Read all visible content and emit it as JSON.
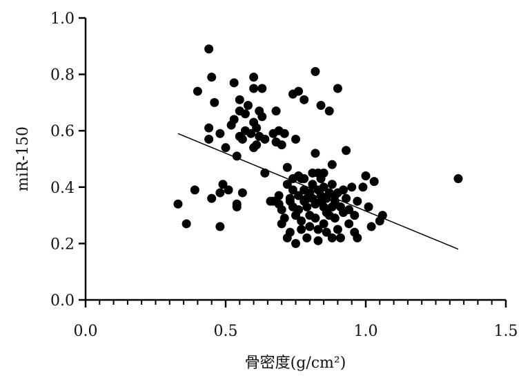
{
  "chart_data": {
    "type": "scatter",
    "title": "",
    "xlabel": "骨密度(g/cm²)",
    "ylabel": "miR-150",
    "xlim": [
      0.0,
      1.5
    ],
    "ylim": [
      0.0,
      1.0
    ],
    "x_ticks": [
      "0.0",
      "0.5",
      "1.0",
      "1.5"
    ],
    "y_ticks": [
      "0.0",
      "0.2",
      "0.4",
      "0.6",
      "0.8",
      "1.0"
    ],
    "grid": false,
    "legend": "none",
    "points": [
      [
        0.33,
        0.34
      ],
      [
        0.36,
        0.27
      ],
      [
        0.39,
        0.39
      ],
      [
        0.4,
        0.74
      ],
      [
        0.44,
        0.89
      ],
      [
        0.44,
        0.61
      ],
      [
        0.44,
        0.57
      ],
      [
        0.45,
        0.79
      ],
      [
        0.45,
        0.36
      ],
      [
        0.46,
        0.7
      ],
      [
        0.48,
        0.26
      ],
      [
        0.48,
        0.59
      ],
      [
        0.48,
        0.38
      ],
      [
        0.49,
        0.41
      ],
      [
        0.5,
        0.54
      ],
      [
        0.51,
        0.39
      ],
      [
        0.52,
        0.62
      ],
      [
        0.53,
        0.77
      ],
      [
        0.53,
        0.64
      ],
      [
        0.54,
        0.51
      ],
      [
        0.54,
        0.33
      ],
      [
        0.54,
        0.34
      ],
      [
        0.55,
        0.71
      ],
      [
        0.55,
        0.67
      ],
      [
        0.55,
        0.58
      ],
      [
        0.56,
        0.57
      ],
      [
        0.56,
        0.38
      ],
      [
        0.57,
        0.66
      ],
      [
        0.57,
        0.6
      ],
      [
        0.58,
        0.69
      ],
      [
        0.59,
        0.59
      ],
      [
        0.6,
        0.63
      ],
      [
        0.6,
        0.79
      ],
      [
        0.6,
        0.75
      ],
      [
        0.61,
        0.61
      ],
      [
        0.61,
        0.55
      ],
      [
        0.62,
        0.67
      ],
      [
        0.62,
        0.58
      ],
      [
        0.63,
        0.75
      ],
      [
        0.63,
        0.65
      ],
      [
        0.64,
        0.57
      ],
      [
        0.64,
        0.45
      ],
      [
        0.66,
        0.35
      ],
      [
        0.67,
        0.59
      ],
      [
        0.68,
        0.67
      ],
      [
        0.68,
        0.56
      ],
      [
        0.69,
        0.6
      ],
      [
        0.69,
        0.37
      ],
      [
        0.7,
        0.55
      ],
      [
        0.7,
        0.32
      ],
      [
        0.71,
        0.59
      ],
      [
        0.72,
        0.47
      ],
      [
        0.72,
        0.41
      ],
      [
        0.73,
        0.35
      ],
      [
        0.73,
        0.24
      ],
      [
        0.74,
        0.73
      ],
      [
        0.74,
        0.39
      ],
      [
        0.74,
        0.33
      ],
      [
        0.75,
        0.3
      ],
      [
        0.75,
        0.2
      ],
      [
        0.76,
        0.74
      ],
      [
        0.76,
        0.44
      ],
      [
        0.76,
        0.37
      ],
      [
        0.77,
        0.28
      ],
      [
        0.77,
        0.25
      ],
      [
        0.78,
        0.71
      ],
      [
        0.78,
        0.35
      ],
      [
        0.78,
        0.39
      ],
      [
        0.79,
        0.33
      ],
      [
        0.79,
        0.22
      ],
      [
        0.8,
        0.38
      ],
      [
        0.8,
        0.3
      ],
      [
        0.81,
        0.41
      ],
      [
        0.81,
        0.36
      ],
      [
        0.82,
        0.81
      ],
      [
        0.82,
        0.52
      ],
      [
        0.82,
        0.34
      ],
      [
        0.83,
        0.45
      ],
      [
        0.83,
        0.39
      ],
      [
        0.83,
        0.21
      ],
      [
        0.84,
        0.69
      ],
      [
        0.84,
        0.43
      ],
      [
        0.84,
        0.37
      ],
      [
        0.85,
        0.4
      ],
      [
        0.85,
        0.33
      ],
      [
        0.85,
        0.27
      ],
      [
        0.86,
        0.36
      ],
      [
        0.86,
        0.24
      ],
      [
        0.87,
        0.67
      ],
      [
        0.87,
        0.38
      ],
      [
        0.87,
        0.3
      ],
      [
        0.88,
        0.48
      ],
      [
        0.88,
        0.41
      ],
      [
        0.88,
        0.22
      ],
      [
        0.89,
        0.35
      ],
      [
        0.89,
        0.29
      ],
      [
        0.9,
        0.75
      ],
      [
        0.9,
        0.38
      ],
      [
        0.9,
        0.25
      ],
      [
        0.91,
        0.33
      ],
      [
        0.91,
        0.22
      ],
      [
        0.92,
        0.39
      ],
      [
        0.93,
        0.53
      ],
      [
        0.93,
        0.36
      ],
      [
        0.94,
        0.32
      ],
      [
        0.94,
        0.27
      ],
      [
        0.95,
        0.4
      ],
      [
        0.96,
        0.3
      ],
      [
        0.96,
        0.24
      ],
      [
        0.97,
        0.22
      ],
      [
        0.99,
        0.4
      ],
      [
        1.0,
        0.44
      ],
      [
        1.01,
        0.33
      ],
      [
        1.02,
        0.26
      ],
      [
        1.03,
        0.42
      ],
      [
        1.05,
        0.28
      ],
      [
        1.06,
        0.3
      ],
      [
        1.33,
        0.43
      ],
      [
        0.6,
        0.54
      ],
      [
        0.67,
        0.35
      ],
      [
        0.71,
        0.29
      ],
      [
        0.72,
        0.22
      ],
      [
        0.75,
        0.57
      ],
      [
        0.77,
        0.43
      ],
      [
        0.79,
        0.36
      ],
      [
        0.8,
        0.26
      ],
      [
        0.82,
        0.29
      ],
      [
        0.84,
        0.35
      ],
      [
        0.86,
        0.31
      ],
      [
        0.88,
        0.33
      ],
      [
        0.92,
        0.31
      ],
      [
        0.97,
        0.35
      ],
      [
        0.7,
        0.27
      ],
      [
        0.76,
        0.32
      ],
      [
        0.81,
        0.45
      ],
      [
        0.73,
        0.36
      ],
      [
        0.78,
        0.43
      ],
      [
        0.85,
        0.45
      ],
      [
        0.89,
        0.37
      ],
      [
        0.69,
        0.34
      ],
      [
        0.74,
        0.43
      ],
      [
        0.83,
        0.25
      ]
    ],
    "fit_line": {
      "x": [
        0.33,
        1.33
      ],
      "y": [
        0.59,
        0.18
      ]
    }
  }
}
